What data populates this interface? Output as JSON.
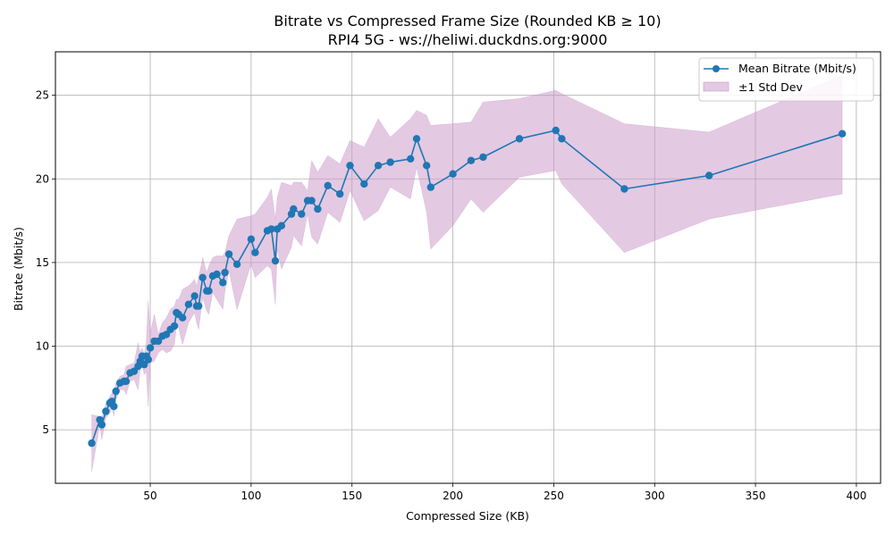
{
  "chart_data": {
    "type": "line",
    "title": "Bitrate vs Compressed Frame Size (Rounded KB ≥ 10)",
    "subtitle": "RPI4 5G - ws://heliwi.duckdns.org:9000",
    "xlabel": "Compressed Size (KB)",
    "ylabel": "Bitrate (Mbit/s)",
    "xlim": [
      3,
      412
    ],
    "ylim": [
      1.8,
      27.6
    ],
    "xticks": [
      50,
      100,
      150,
      200,
      250,
      300,
      350,
      400
    ],
    "yticks": [
      5,
      10,
      15,
      20,
      25
    ],
    "grid": true,
    "legend_position": "top-right",
    "colors": {
      "line": "#1f77b4",
      "band": "#c994c7"
    },
    "series": [
      {
        "name": "Mean Bitrate (Mbit/s)",
        "kind": "line-markers",
        "x": [
          21,
          25,
          26,
          28,
          30,
          31,
          32,
          33,
          35,
          37,
          38,
          40,
          42,
          44,
          45,
          46,
          47,
          48,
          49,
          50,
          52,
          54,
          56,
          58,
          60,
          62,
          63,
          64,
          66,
          69,
          72,
          73,
          74,
          76,
          78,
          79,
          81,
          83,
          86,
          87,
          89,
          93,
          100,
          102,
          108,
          110,
          112,
          113,
          115,
          120,
          121,
          125,
          128,
          130,
          133,
          138,
          144,
          149,
          156,
          163,
          169,
          179,
          182,
          187,
          189,
          200,
          209,
          215,
          233,
          251,
          254,
          285,
          327,
          393
        ],
        "y": [
          4.2,
          5.6,
          5.3,
          6.1,
          6.6,
          6.7,
          6.4,
          7.3,
          7.8,
          7.9,
          7.9,
          8.4,
          8.5,
          8.8,
          9.1,
          9.4,
          8.9,
          9.4,
          9.2,
          9.9,
          10.3,
          10.3,
          10.6,
          10.7,
          11.0,
          11.2,
          12.0,
          11.9,
          11.7,
          12.5,
          13.0,
          12.4,
          12.4,
          14.1,
          13.3,
          13.3,
          14.2,
          14.3,
          13.8,
          14.4,
          15.5,
          14.9,
          16.4,
          15.6,
          16.9,
          17.0,
          15.1,
          17.0,
          17.2,
          17.9,
          18.2,
          17.9,
          18.7,
          18.7,
          18.2,
          19.6,
          19.1,
          20.8,
          19.7,
          20.8,
          21.0,
          21.2,
          22.4,
          20.8,
          19.5,
          20.3,
          21.1,
          21.3,
          22.4,
          22.9,
          22.4,
          19.4,
          20.2,
          22.7
        ]
      },
      {
        "name": "±1 Std Dev",
        "kind": "band",
        "x": [
          21,
          25,
          26,
          28,
          30,
          31,
          32,
          33,
          35,
          37,
          38,
          40,
          42,
          44,
          45,
          46,
          47,
          48,
          49,
          50,
          52,
          54,
          56,
          58,
          60,
          62,
          63,
          64,
          66,
          69,
          72,
          73,
          74,
          76,
          78,
          79,
          81,
          83,
          86,
          87,
          89,
          93,
          100,
          102,
          108,
          110,
          112,
          113,
          115,
          120,
          121,
          125,
          128,
          130,
          133,
          138,
          144,
          149,
          156,
          163,
          169,
          179,
          182,
          187,
          189,
          200,
          209,
          215,
          233,
          251,
          254,
          285,
          327,
          393
        ],
        "upper": [
          5.9,
          5.8,
          5.7,
          6.6,
          7.0,
          7.2,
          7.3,
          7.8,
          8.2,
          8.3,
          8.8,
          8.9,
          9.0,
          10.2,
          9.6,
          9.9,
          9.5,
          10.2,
          12.7,
          10.8,
          11.9,
          10.7,
          11.4,
          11.7,
          12.2,
          12.4,
          12.8,
          12.8,
          13.4,
          13.6,
          14.0,
          13.6,
          14.1,
          15.3,
          14.4,
          14.8,
          15.3,
          15.4,
          15.4,
          15.6,
          16.6,
          17.6,
          17.8,
          17.9,
          18.9,
          19.4,
          17.6,
          18.9,
          19.8,
          19.6,
          19.8,
          19.8,
          19.3,
          21.1,
          20.4,
          21.4,
          20.9,
          22.3,
          21.9,
          23.6,
          22.5,
          23.6,
          24.1,
          23.8,
          23.2,
          23.3,
          23.4,
          24.6,
          24.8,
          25.3,
          25.1,
          23.3,
          22.8,
          26.2
        ],
        "lower": [
          2.5,
          5.3,
          4.4,
          5.7,
          6.0,
          6.3,
          5.8,
          6.8,
          7.4,
          7.4,
          7.1,
          7.9,
          8.0,
          7.4,
          8.6,
          8.9,
          8.3,
          8.5,
          6.4,
          9.0,
          9.1,
          9.6,
          9.8,
          9.6,
          9.7,
          10.1,
          11.2,
          11.1,
          10.1,
          11.4,
          12.0,
          11.4,
          11.0,
          12.9,
          12.1,
          11.9,
          13.2,
          12.8,
          12.2,
          13.3,
          14.5,
          12.2,
          14.9,
          14.1,
          14.8,
          14.6,
          12.5,
          15.8,
          14.6,
          15.9,
          16.6,
          16.0,
          17.9,
          16.5,
          16.1,
          18.0,
          17.4,
          19.3,
          17.5,
          18.1,
          19.5,
          18.8,
          20.7,
          18.0,
          15.8,
          17.2,
          18.8,
          18.0,
          20.1,
          20.5,
          19.7,
          15.6,
          17.6,
          19.1
        ]
      }
    ]
  }
}
